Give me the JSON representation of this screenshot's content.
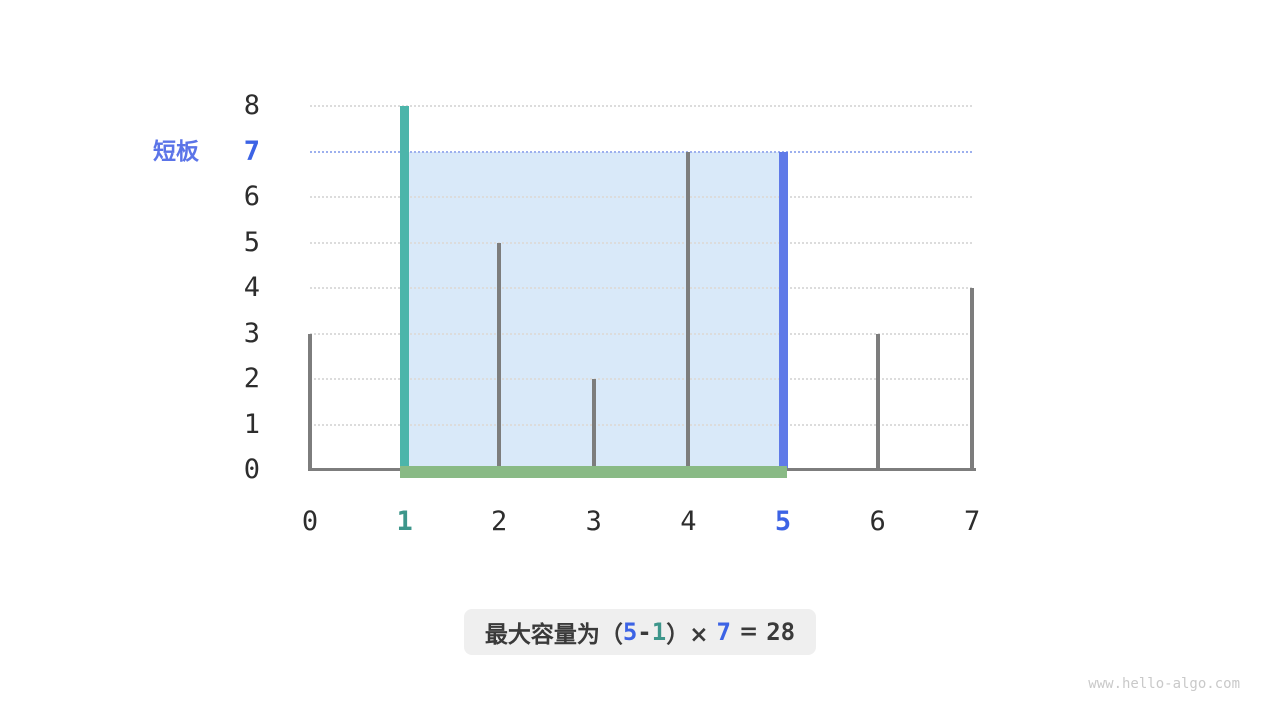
{
  "chart_data": {
    "type": "bar",
    "style": "pillar-lines",
    "title": "",
    "x": [
      0,
      1,
      2,
      3,
      4,
      5,
      6,
      7
    ],
    "heights": [
      3,
      8,
      5,
      2,
      7,
      7,
      3,
      4
    ],
    "x_ticks": [
      "0",
      "1",
      "2",
      "3",
      "4",
      "5",
      "6",
      "7"
    ],
    "y_ticks": [
      "0",
      "1",
      "2",
      "3",
      "4",
      "5",
      "6",
      "7",
      "8"
    ],
    "ylim": [
      0,
      8
    ],
    "xlim": [
      0,
      7
    ],
    "grid": "horizontal-dotted",
    "highlight": {
      "left_index": 1,
      "right_index": 5,
      "water_level": 7,
      "width": 4,
      "capacity": 28
    }
  },
  "labels": {
    "short_board": "短板"
  },
  "caption": {
    "full_text": "最大容量为（5-1）× 7 = 28",
    "parts": [
      {
        "text": "最大容量为（",
        "style": "cjk"
      },
      {
        "text": "5",
        "style": "num blue-text"
      },
      {
        "text": "-",
        "style": "num dark"
      },
      {
        "text": "1",
        "style": "num teal-text"
      },
      {
        "text": "）× ",
        "style": "cjk"
      },
      {
        "text": "7",
        "style": "num blue-text"
      },
      {
        "text": " = ",
        "style": "cjk"
      },
      {
        "text": "28",
        "style": "num dark"
      }
    ]
  },
  "watermark": "www.hello-algo.com",
  "colors": {
    "teal_bar": "#4cb5aa",
    "blue_bar": "#5f7ae8",
    "gray_bar": "#7d7d7d",
    "green_base": "#89ba85",
    "shade_fill": "#d9e9f9",
    "waterline": "#9db0ee",
    "gridline": "#dcdcdc",
    "blue_text": "#3c63e5",
    "teal_text": "#3d968b",
    "caption_bg": "#efefef",
    "tick_text": "#2d2d2d",
    "watermark_text": "#c9c9c9"
  }
}
